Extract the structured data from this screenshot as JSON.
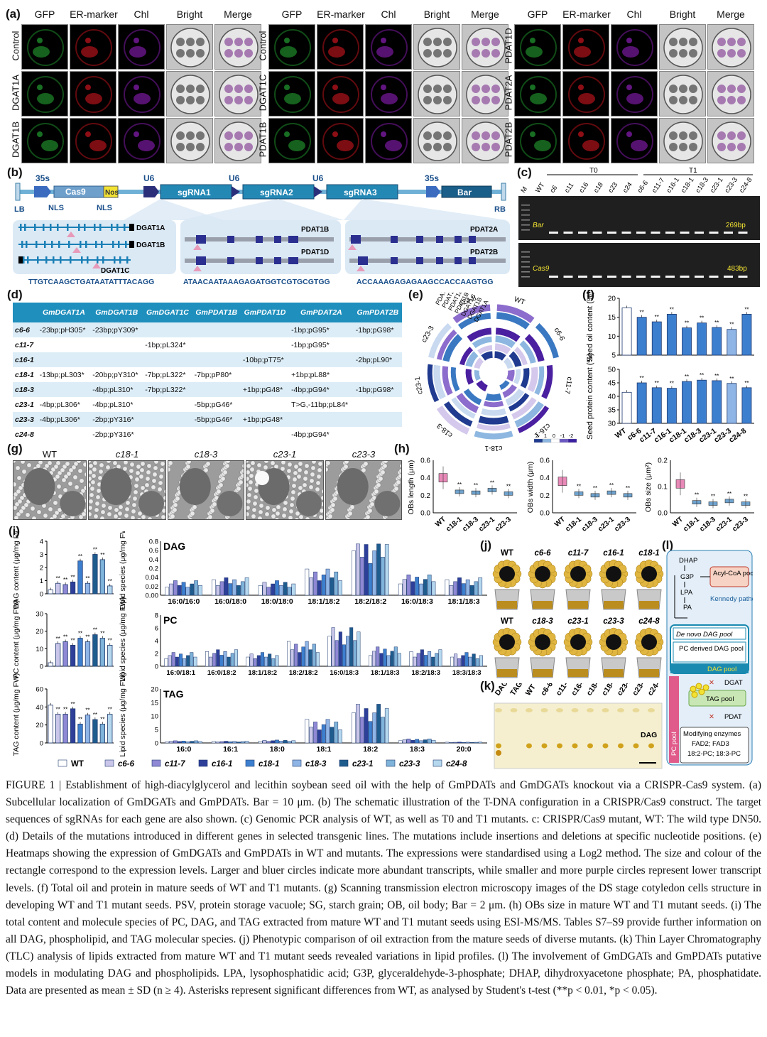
{
  "panels": {
    "a": {
      "letter": "(a)",
      "col_headers": [
        "GFP",
        "ER-marker",
        "Chl",
        "Bright",
        "Merge"
      ],
      "groups": [
        {
          "rows": [
            "Control",
            "DGAT1A",
            "DGAT1B"
          ]
        },
        {
          "rows": [
            "Control",
            "DGAT1C",
            "PDAT1B"
          ]
        },
        {
          "rows": [
            "PDAT1D",
            "PDAT2A",
            "PDAT2B"
          ]
        }
      ]
    },
    "b": {
      "letter": "(b)",
      "promoters": [
        "35s",
        "U6",
        "U6",
        "U6",
        "35s"
      ],
      "blocks": [
        "Cas9",
        "Nos",
        "sgRNA1",
        "sgRNA2",
        "sgRNA3",
        "Bar"
      ],
      "borders": [
        "LB",
        "RB"
      ],
      "nls": [
        "NLS",
        "NLS"
      ],
      "gene_labels_1": [
        "DGAT1A",
        "DGAT1B",
        "DGAT1C"
      ],
      "gene_labels_2": [
        "PDAT1B",
        "PDAT1D"
      ],
      "gene_labels_3": [
        "PDAT2A",
        "PDAT2B"
      ],
      "sequences": [
        "TTGTCAAGCTGATAATATTTACAGG",
        "ATAACAATAAAGAGATGGTCGTGCGTGG",
        "ACCAAAGAGAGAAGCCACCAAGTGG"
      ]
    },
    "c": {
      "letter": "(c)",
      "groups": [
        "T0",
        "T1"
      ],
      "lanes": [
        "M",
        "WT",
        "c6",
        "c11",
        "c16",
        "c18",
        "c23",
        "c24",
        "c6-6",
        "c11-7",
        "c16-1",
        "c18-1",
        "c18-3",
        "c23-1",
        "c23-3",
        "c24-8"
      ],
      "bands": [
        {
          "name": "Bar",
          "size": "269bp"
        },
        {
          "name": "Cas9",
          "size": "483bp"
        }
      ]
    },
    "d": {
      "letter": "(d)",
      "columns": [
        "",
        "GmDGAT1A",
        "GmDGAT1B",
        "GmDGAT1C",
        "GmPDAT1B",
        "GmPDAT1D",
        "GmPDAT2A",
        "GmPDAT2B"
      ],
      "rows": [
        [
          "c6-6",
          "-23bp;pH305*",
          "-23bp;pY309*",
          "",
          "",
          "",
          "-1bp;pG95*",
          "-1bp;pG98*"
        ],
        [
          "c11-7",
          "",
          "",
          "-1bp;pL324*",
          "",
          "",
          "-1bp;pG95*",
          ""
        ],
        [
          "c16-1",
          "",
          "",
          "",
          "",
          "-10bp;pT75*",
          "",
          "-2bp;pL90*"
        ],
        [
          "c18-1",
          "-13bp;pL303*",
          "-20bp;pY310*",
          "-7bp;pL322*",
          "-7bp;pP80*",
          "",
          "+1bp;pL88*",
          ""
        ],
        [
          "c18-3",
          "",
          "-4bp;pL310*",
          "-7bp;pL322*",
          "",
          "+1bp;pG48*",
          "-4bp;pG94*",
          "-1bp;pG98*"
        ],
        [
          "c23-1",
          "-4bp;pL306*",
          "-4bp;pL310*",
          "",
          "-5bp;pG46*",
          "",
          "T>G,-11bp;pL84*",
          ""
        ],
        [
          "c23-3",
          "-4bp;pL306*",
          "-2bp;pY316*",
          "",
          "-5bp;pG46*",
          "+1bp;pG48*",
          "",
          ""
        ],
        [
          "c24-8",
          "",
          "-2bp;pY316*",
          "",
          "",
          "",
          "-4bp;pG94*",
          ""
        ]
      ]
    },
    "e": {
      "letter": "(e)",
      "genes": [
        "PDAT2B",
        "PDAT2A",
        "PDAT1D",
        "PDAT1B",
        "DGAT1C",
        "DGAT1B",
        "DGAT1A"
      ],
      "samples": [
        "WT",
        "c6-6",
        "c11-7",
        "c16-1",
        "c18-1",
        "c18-3",
        "c23-1",
        "c23-3",
        "c24-8"
      ],
      "scale": [
        "2",
        "1",
        "0",
        "-1",
        "-2"
      ]
    },
    "f": {
      "letter": "(f)",
      "ylabel_top": "Seed oil content (%)",
      "ylabel_bottom": "Seed protein content (%)",
      "categories": [
        "WT",
        "c6-6",
        "c11-7",
        "c16-1",
        "c18-1",
        "c18-3",
        "c23-1",
        "c23-3",
        "c24-8"
      ]
    },
    "g": {
      "letter": "(g)",
      "labels": [
        "WT",
        "c18-1",
        "c18-3",
        "c23-1",
        "c23-3"
      ]
    },
    "h": {
      "letter": "(h)",
      "ylabels": [
        "OBs length (μm)",
        "OBs width (μm)",
        "OBs size (μm²)"
      ],
      "categories": [
        "WT",
        "c18-1",
        "c18-3",
        "c23-1",
        "c23-3"
      ]
    },
    "i": {
      "letter": "(i)",
      "ylabels_left": [
        "DAG content (μg/mg FW)",
        "PC content (μg/mg FW)",
        "TAG content (μg/mg FW)"
      ],
      "ylabel_right": "Lipid species (μg/mg FW)",
      "titles": [
        "DAG",
        "PC",
        "TAG"
      ],
      "dag_species": [
        "16:0/16:0",
        "16:0/18:0",
        "18:0/18:0",
        "18:1/18:2",
        "18:2/18:2",
        "16:0/18:3",
        "18:1/18:3"
      ],
      "pc_species": [
        "16:0/18:1",
        "16:0/18:2",
        "18:1/18:2",
        "18:2/18:2",
        "16:0/18:3",
        "18:1/18:3",
        "18:2/18:3",
        "18:3/18:3"
      ],
      "tag_species": [
        "16:0",
        "16:1",
        "18:0",
        "18:1",
        "18:2",
        "18:3",
        "20:0"
      ],
      "legend": [
        "WT",
        "c6-6",
        "c11-7",
        "c16-1",
        "c18-1",
        "c18-3",
        "c23-1",
        "c23-3",
        "c24-8"
      ]
    },
    "j": {
      "letter": "(j)",
      "row1": [
        "WT",
        "c6-6",
        "c11-7",
        "c16-1",
        "c18-1"
      ],
      "row2": [
        "WT",
        "c18-3",
        "c23-1",
        "c23-3",
        "c24-8"
      ]
    },
    "k": {
      "letter": "(k)",
      "lanes": [
        "DAG",
        "TAG",
        "WT",
        "c6-6",
        "c11-7",
        "c16-1",
        "c18-1",
        "c18-3",
        "c23-1",
        "c23-3",
        "c24-8"
      ],
      "band_label": "DAG"
    },
    "l": {
      "letter": "(l)",
      "dhap": "DHAP",
      "g3p": "G3P",
      "lpa": "LPA",
      "pa": "PA",
      "acyl": "Acyl-CoA pool",
      "kennedy": "Kennedy pathway",
      "denovo": "De novo DAG pool",
      "pcderived": "PC derived DAG pool",
      "dagpool": "DAG pool",
      "dgat": "DGAT",
      "tagpool": "TAG pool",
      "pdat": "PDAT",
      "pcpool": "PC pool",
      "modifying": "Modifying enzymes",
      "fad": "FAD2; FAD3",
      "pcs": "18:2-PC; 18:3-PC"
    }
  },
  "caption": {
    "lines": [
      "FIGURE 1 | Establishment of high-diacylglycerol and lecithin soybean seed oil with the help of GmPDATs and GmDGATs knockout via a CRISPR-Cas9 system. (a) Subcellular localization of GmDGATs and GmPDATs. Bar = 10 μm. (b) The schematic illustration of the T-DNA configuration in a CRISPR/Cas9 construct. The target sequences of sgRNAs for each gene are also shown. (c) Genomic PCR analysis of WT, as well as T0 and T1 mutants. c: CRISPR/Cas9 mutant, WT: The wild type DN50. (d) Details of the mutations introduced in different genes in selected transgenic lines. The mutations include insertions and deletions at specific nucleotide positions. (e) Heatmaps showing the expression of GmDGATs and GmPDATs in WT and mutants. The expressions were standardised using a Log2 method. The size and colour of the rectangle correspond to the expression levels. Larger and bluer circles indicate more abundant transcripts, while smaller and more purple circles represent lower transcript levels. (f) Total oil and protein in mature seeds of WT and T1 mutants. (g) Scanning transmission electron microscopy images of the DS stage cotyledon cells structure in developing WT and T1 mutant seeds. PSV, protein storage vacuole; SG, starch grain; OB, oil body; Bar = 2 μm. (h) OBs size in mature WT and T1 mutant seeds. (i) The total content and molecule species of PC, DAG, and TAG extracted from mature WT and T1 mutant seeds using ESI-MS/MS. Tables S7–S9 provide further information on all DAG, phospholipid, and TAG molecular species. (j) Phenotypic comparison of oil extraction from the mature seeds of diverse mutants. (k) Thin Layer Chromatography (TLC) analysis of lipids extracted from mature WT and T1 mutant seeds revealed variations in lipid profiles. (l) The involvement of GmDGATs and GmPDATs putative models in modulating DAG and phospholipids. LPA, lysophosphatidic acid; G3P, glyceraldehyde-3-phosphate; DHAP, dihydroxyacetone phosphate; PA, phosphatidate. Data are presented as mean ± SD (n ≥ 4). Asterisks represent significant differences from WT, as analysed by Student's t-test (**p < 0.01, *p < 0.05)."
    ]
  },
  "chart_data": [
    {
      "type": "bar",
      "name_ref": "f-oil",
      "categories": [
        "WT",
        "c6-6",
        "c11-7",
        "c16-1",
        "c18-1",
        "c18-3",
        "c23-1",
        "c23-3",
        "c24-8"
      ],
      "values": [
        17.5,
        15,
        13.8,
        15.8,
        12.2,
        13.5,
        12.3,
        11.8,
        15.8
      ],
      "ylim": [
        5,
        20
      ],
      "ylabel": "Seed oil content (%)"
    },
    {
      "type": "bar",
      "name_ref": "f-protein",
      "categories": [
        "WT",
        "c6-6",
        "c11-7",
        "c16-1",
        "c18-1",
        "c18-3",
        "c23-1",
        "c23-3",
        "c24-8"
      ],
      "values": [
        41.5,
        45,
        43.2,
        43,
        45.5,
        46,
        45.8,
        44.8,
        43.2
      ],
      "ylim": [
        30,
        50
      ],
      "ylabel": "Seed protein content (%)"
    },
    {
      "type": "bar",
      "name_ref": "i-dag",
      "categories": [
        "WT",
        "c6-6",
        "c11-7",
        "c16-1",
        "c18-1",
        "c18-3",
        "c23-1",
        "c23-3",
        "c24-8"
      ],
      "values": [
        0.3,
        0.8,
        0.7,
        0.9,
        2.5,
        0.8,
        3.0,
        2.6,
        0.6
      ],
      "ylim": [
        0,
        4
      ],
      "ylabel": "DAG content (μg/mg FW)"
    },
    {
      "type": "bar",
      "name_ref": "i-pc",
      "categories": [
        "WT",
        "c6-6",
        "c11-7",
        "c16-1",
        "c18-1",
        "c18-3",
        "c23-1",
        "c23-3",
        "c24-8"
      ],
      "values": [
        2,
        13,
        14,
        12,
        16,
        14,
        18,
        16,
        12
      ],
      "ylim": [
        0,
        30
      ],
      "ylabel": "PC content (μg/mg FW)"
    },
    {
      "type": "bar",
      "name_ref": "i-tag",
      "categories": [
        "WT",
        "c6-6",
        "c11-7",
        "c16-1",
        "c18-1",
        "c18-3",
        "c23-1",
        "c23-3",
        "c24-8"
      ],
      "values": [
        42,
        32,
        32,
        38,
        21,
        31,
        26,
        21,
        32
      ],
      "ylim": [
        0,
        60
      ],
      "ylabel": "TAG content (μg/mg FW)"
    }
  ],
  "colors": {
    "legend": [
      "#ffffff",
      "#c9c6ea",
      "#8f88d4",
      "#2e3f9a",
      "#3d7fcf",
      "#8fb5e6",
      "#1f5c8e",
      "#7fb3d9",
      "#b5d8ee"
    ],
    "table_header": "#1f8fbd"
  }
}
